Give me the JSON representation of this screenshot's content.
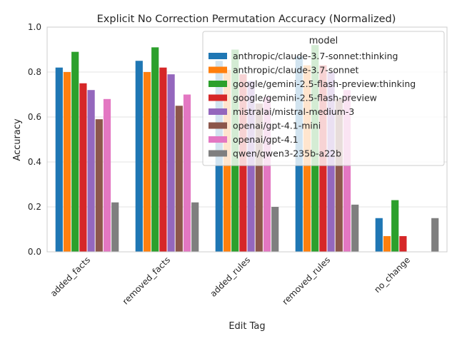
{
  "chart_data": {
    "type": "bar",
    "title": "Explicit No Correction Permutation Accuracy (Normalized)",
    "xlabel": "Edit Tag",
    "ylabel": "Accuracy",
    "ylim": [
      0,
      1.0
    ],
    "yticks": [
      "0.0",
      "0.2",
      "0.4",
      "0.6",
      "0.8",
      "1.0"
    ],
    "grid": true,
    "legend": {
      "title": "model",
      "placement": "upper right"
    },
    "categories": [
      "added_facts",
      "removed_facts",
      "added_rules",
      "removed_rules",
      "no_change"
    ],
    "series": [
      {
        "name": "anthropic/claude-3.7-sonnet:thinking",
        "color": "#1f77b4",
        "values": [
          0.82,
          0.85,
          0.85,
          0.87,
          0.15
        ]
      },
      {
        "name": "anthropic/claude-3.7-sonnet",
        "color": "#ff7f0e",
        "values": [
          0.8,
          0.8,
          0.81,
          0.83,
          0.07
        ]
      },
      {
        "name": "google/gemini-2.5-flash-preview:thinking",
        "color": "#2ca02c",
        "values": [
          0.89,
          0.91,
          0.9,
          0.92,
          0.23
        ]
      },
      {
        "name": "google/gemini-2.5-flash-preview",
        "color": "#d62728",
        "values": [
          0.75,
          0.82,
          0.79,
          0.83,
          0.07
        ]
      },
      {
        "name": "mistralai/mistral-medium-3",
        "color": "#9467bd",
        "values": [
          0.72,
          0.79,
          0.76,
          0.8,
          0.0
        ]
      },
      {
        "name": "openai/gpt-4.1-mini",
        "color": "#8c564b",
        "values": [
          0.59,
          0.65,
          0.66,
          0.68,
          0.0
        ]
      },
      {
        "name": "openai/gpt-4.1",
        "color": "#e377c2",
        "values": [
          0.68,
          0.7,
          0.69,
          0.72,
          0.0
        ]
      },
      {
        "name": "qwen/qwen3-235b-a22b",
        "color": "#7f7f7f",
        "values": [
          0.22,
          0.22,
          0.2,
          0.21,
          0.15
        ]
      }
    ]
  }
}
